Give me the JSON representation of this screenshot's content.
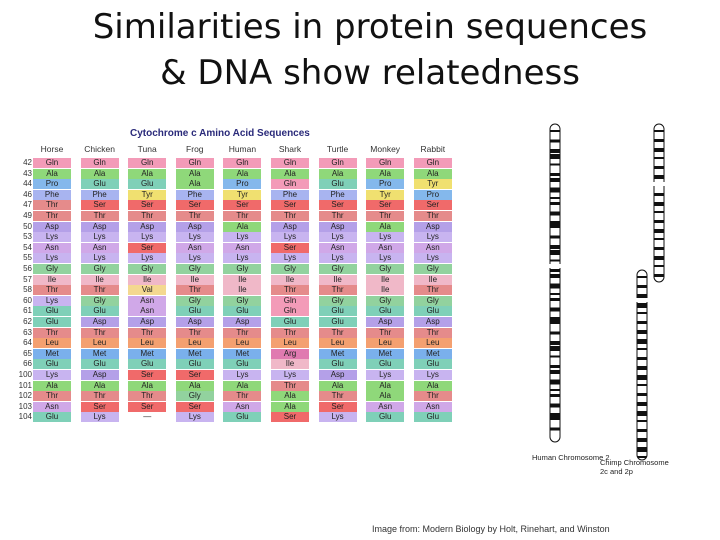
{
  "slide": {
    "title_line1": "Similarities in protein sequences",
    "title_line2": "& DNA show relatedness",
    "credit": "Image from: Modern Biology by Holt, Rinehart, and Winston"
  },
  "table": {
    "title": "Cytochrome c Amino Acid Sequences",
    "species": [
      "Horse",
      "Chicken",
      "Tuna",
      "Frog",
      "Human",
      "Shark",
      "Turtle",
      "Monkey",
      "Rabbit"
    ],
    "positions": [
      "42",
      "43",
      "44",
      "46",
      "47",
      "49",
      "50",
      "53",
      "54",
      "55",
      "56",
      "57",
      "58",
      "60",
      "61",
      "62",
      "63",
      "64",
      "65",
      "66",
      "100",
      "101",
      "102",
      "103",
      "104"
    ],
    "columns": [
      [
        "Gln",
        "Ala",
        "Pro",
        "Phe",
        "Thr",
        "Thr",
        "Asp",
        "Lys",
        "Asn",
        "Lys",
        "Gly",
        "Ile",
        "Thr",
        "Lys",
        "Glu",
        "Glu",
        "Thr",
        "Leu",
        "Met",
        "Glu",
        "Lys",
        "Ala",
        "Thr",
        "Asn",
        "Glu"
      ],
      [
        "Gln",
        "Ala",
        "Glu",
        "Phe",
        "Ser",
        "Thr",
        "Asp",
        "Lys",
        "Asn",
        "Lys",
        "Gly",
        "Ile",
        "Thr",
        "Gly",
        "Glu",
        "Asp",
        "Thr",
        "Leu",
        "Met",
        "Glu",
        "Asp",
        "Ala",
        "Thr",
        "Ser",
        "Lys"
      ],
      [
        "Gln",
        "Ala",
        "Glu",
        "Tyr",
        "Ser",
        "Thr",
        "Asp",
        "Lys",
        "Ser",
        "Lys",
        "Gly",
        "Ile",
        "Val",
        "Asn",
        "Asn",
        "Asp",
        "Thr",
        "Leu",
        "Met",
        "Glu",
        "Ser",
        "Ala",
        "Thr",
        "Ser",
        "—"
      ],
      [
        "Gln",
        "Ala",
        "Ala",
        "Phe",
        "Ser",
        "Thr",
        "Asp",
        "Lys",
        "Asn",
        "Lys",
        "Gly",
        "Ile",
        "Thr",
        "Gly",
        "Glu",
        "Asp",
        "Thr",
        "Leu",
        "Met",
        "Glu",
        "Ser",
        "Ala",
        "Gly",
        "Ser",
        "Lys"
      ],
      [
        "Gln",
        "Ala",
        "Pro",
        "Tyr",
        "Ser",
        "Thr",
        "Ala",
        "Lys",
        "Asn",
        "Lys",
        "Gly",
        "Ile",
        "Ile",
        "Gly",
        "Glu",
        "Asp",
        "Thr",
        "Leu",
        "Met",
        "Glu",
        "Lys",
        "Ala",
        "Thr",
        "Asn",
        "Glu"
      ],
      [
        "Gln",
        "Ala",
        "Gln",
        "Phe",
        "Ser",
        "Thr",
        "Asp",
        "Lys",
        "Ser",
        "Lys",
        "Gly",
        "Ile",
        "Thr",
        "Gln",
        "Gln",
        "Glu",
        "Thr",
        "Leu",
        "Arg",
        "Ile",
        "Lys",
        "Thr",
        "Ala",
        "Ala",
        "Ser"
      ],
      [
        "Gln",
        "Ala",
        "Glu",
        "Phe",
        "Ser",
        "Thr",
        "Asp",
        "Lys",
        "Asn",
        "Lys",
        "Gly",
        "Ile",
        "Thr",
        "Gly",
        "Glu",
        "Glu",
        "Thr",
        "Leu",
        "Met",
        "Glu",
        "Asp",
        "Ala",
        "Thr",
        "Ser",
        "Lys"
      ],
      [
        "Gln",
        "Ala",
        "Pro",
        "Tyr",
        "Ser",
        "Thr",
        "Ala",
        "Lys",
        "Asn",
        "Lys",
        "Gly",
        "Ile",
        "Ile",
        "Gly",
        "Glu",
        "Asp",
        "Thr",
        "Leu",
        "Met",
        "Glu",
        "Lys",
        "Ala",
        "Ala",
        "Asn",
        "Glu"
      ],
      [
        "Gln",
        "Ala",
        "Tyr",
        "Pro",
        "Ser",
        "Thr",
        "Asp",
        "Lys",
        "Asn",
        "Lys",
        "Gly",
        "Ile",
        "Thr",
        "Gly",
        "Glu",
        "Asp",
        "Thr",
        "Leu",
        "Met",
        "Glu",
        "Lys",
        "Ala",
        "Thr",
        "Asn",
        "Glu"
      ]
    ],
    "colors": {
      "Gln": "#f39bb8",
      "Ala": "#8fd87a",
      "Pro": "#84b8ec",
      "Glu": "#7fd0b8",
      "Phe": "#a8b4f0",
      "Tyr": "#f0e070",
      "Ser": "#f06a6a",
      "Thr": "#e58b8b",
      "Asp": "#b4a0e8",
      "Lys": "#c8b4f0",
      "Asn": "#d0a8e8",
      "Gly": "#92d29e",
      "Ile": "#f0b8c8",
      "Val": "#f4d890",
      "Leu": "#f4a070",
      "Met": "#7ab0ec",
      "Arg": "#e07ab0",
      "—": "#ffffff"
    }
  },
  "chromosomes": {
    "human_label": "Human Chromosome 2",
    "chimp_label": "Chimp Chromosome 2c and 2p"
  }
}
